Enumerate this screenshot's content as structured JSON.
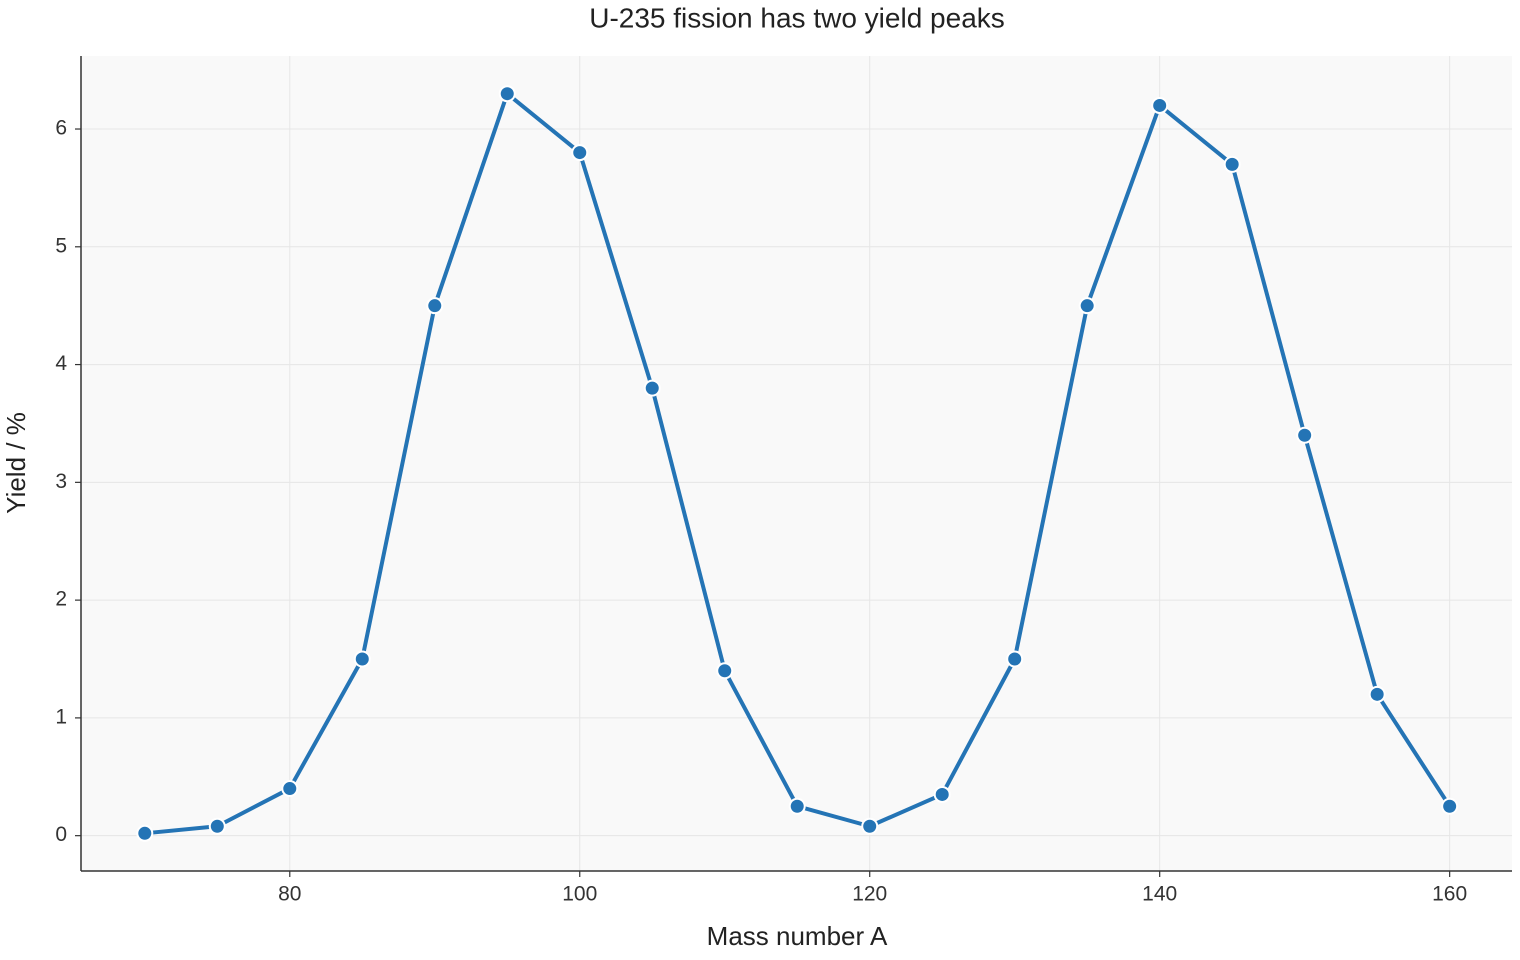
{
  "chart_data": {
    "type": "line",
    "title": "U-235 fission has two yield peaks",
    "x_label": "Mass number A",
    "y_label": "Yield / %",
    "x": [
      70,
      75,
      80,
      85,
      90,
      95,
      100,
      105,
      110,
      115,
      120,
      125,
      130,
      135,
      140,
      145,
      150,
      155,
      160
    ],
    "series": [
      {
        "name": "Yield",
        "color": "#2474b5",
        "values": [
          0.02,
          0.08,
          0.4,
          1.5,
          4.5,
          6.3,
          5.8,
          3.8,
          1.4,
          0.25,
          0.08,
          0.35,
          1.5,
          4.5,
          6.2,
          5.7,
          3.4,
          1.2,
          0.25
        ]
      }
    ],
    "xlim": [
      65.6,
      164.3
    ],
    "ylim": [
      -0.3,
      6.62
    ],
    "xticks": [
      80,
      100,
      120,
      140,
      160
    ],
    "yticks": [
      0,
      1,
      2,
      3,
      4,
      5,
      6
    ],
    "grid": true
  }
}
